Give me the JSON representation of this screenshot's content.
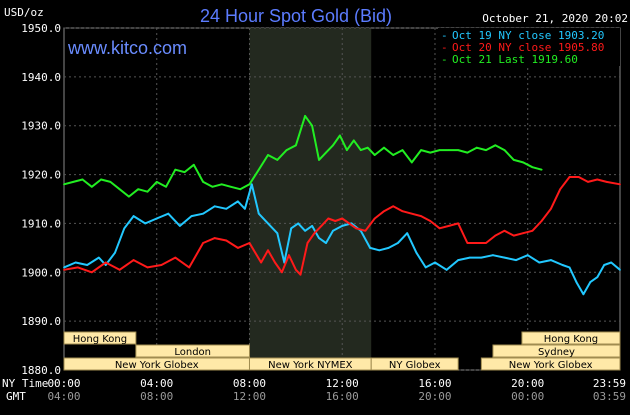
{
  "header": {
    "unit": "USD/oz",
    "title": "24 Hour Spot Gold (Bid)",
    "timestamp": "October 21, 2020 20:02",
    "site": "www.kitco.com"
  },
  "legend": [
    {
      "label": "Oct 19 NY close 1903.20",
      "color": "#22c8ff",
      "marker": "-"
    },
    {
      "label": "Oct 20 NY close 1905.80",
      "color": "#ff1a1a",
      "marker": "-"
    },
    {
      "label": "Oct 21 Last 1919.60",
      "color": "#22ee22",
      "marker": "-"
    }
  ],
  "axis_labels": {
    "ny_time": "NY Time",
    "gmt": "GMT"
  },
  "sessions": [
    {
      "label": "Hong Kong",
      "row": 0,
      "start": 0,
      "end": 3.1
    },
    {
      "label": "London",
      "row": 1,
      "start": 3.1,
      "end": 8.0
    },
    {
      "label": "New York Globex",
      "row": 2,
      "start": 0,
      "end": 8.0
    },
    {
      "label": "New York NYMEX",
      "row": 2,
      "start": 8.0,
      "end": 13.25
    },
    {
      "label": "NY Globex",
      "row": 2,
      "start": 13.25,
      "end": 17.0
    },
    {
      "label": "Hong Kong",
      "row": 0,
      "start": 19.75,
      "end": 23.98
    },
    {
      "label": "Sydney",
      "row": 1,
      "start": 18.5,
      "end": 23.98
    },
    {
      "label": "New York Globex",
      "row": 2,
      "start": 18.0,
      "end": 23.98
    }
  ],
  "chart_data": {
    "type": "line",
    "title": "24 Hour Spot Gold (Bid)",
    "ylabel": "USD/oz",
    "ylim": [
      1880,
      1950
    ],
    "xlim": [
      0,
      23.98
    ],
    "y_ticks": [
      "1880.0",
      "1890.0",
      "1900.0",
      "1910.0",
      "1920.0",
      "1930.0",
      "1940.0",
      "1950.0"
    ],
    "x_ticks_ny": [
      "00:00",
      "04:00",
      "08:00",
      "12:00",
      "16:00",
      "20:00",
      "23:59"
    ],
    "x_ticks_gmt": [
      "04:00",
      "08:00",
      "12:00",
      "16:00",
      "20:00",
      "00:00",
      "03:59"
    ],
    "x_tick_hours": [
      0,
      4,
      8,
      12,
      16,
      20,
      23.98
    ],
    "shaded_region": [
      8.0,
      13.25
    ],
    "series": [
      {
        "name": "Oct 19 NY close 1903.20",
        "color": "#22c8ff",
        "x": [
          0,
          0.5,
          1.0,
          1.5,
          1.8,
          2.2,
          2.6,
          3.0,
          3.5,
          4.0,
          4.5,
          5.0,
          5.5,
          6.0,
          6.5,
          7.0,
          7.5,
          7.8,
          8.1,
          8.4,
          8.8,
          9.2,
          9.5,
          9.8,
          10.1,
          10.4,
          10.7,
          11.0,
          11.3,
          11.6,
          12.0,
          12.4,
          12.8,
          13.2,
          13.6,
          14.0,
          14.4,
          14.8,
          15.2,
          15.6,
          16.0,
          16.5,
          17.0,
          17.5,
          18.0,
          18.5,
          19.0,
          19.5,
          20.0,
          20.5,
          21.0,
          21.5,
          21.8,
          22.1,
          22.4,
          22.7,
          23.0,
          23.3,
          23.6,
          23.98
        ],
        "values": [
          1901,
          1902,
          1901.5,
          1903,
          1901.5,
          1904,
          1909,
          1911.5,
          1910,
          1911,
          1912,
          1909.5,
          1911.5,
          1912,
          1913.5,
          1913,
          1914.5,
          1913,
          1918,
          1912,
          1910,
          1908,
          1902,
          1909,
          1910,
          1908.5,
          1909.5,
          1907,
          1906,
          1908.5,
          1909.5,
          1910,
          1908.5,
          1905,
          1904.5,
          1905,
          1906,
          1908,
          1904,
          1901,
          1902,
          1900.5,
          1902.5,
          1903,
          1903,
          1903.5,
          1903,
          1902.5,
          1903.5,
          1902,
          1902.5,
          1901.5,
          1901,
          1898,
          1895.5,
          1898,
          1899,
          1901.5,
          1902,
          1900.5
        ]
      },
      {
        "name": "Oct 20 NY close 1905.80",
        "color": "#ff1a1a",
        "x": [
          0,
          0.6,
          1.2,
          1.8,
          2.4,
          3.0,
          3.6,
          4.2,
          4.8,
          5.4,
          6.0,
          6.5,
          7.0,
          7.5,
          8.0,
          8.5,
          8.8,
          9.1,
          9.4,
          9.7,
          10.0,
          10.2,
          10.5,
          10.8,
          11.1,
          11.4,
          11.7,
          12.0,
          12.3,
          12.6,
          13.0,
          13.4,
          13.8,
          14.2,
          14.6,
          15.0,
          15.4,
          15.8,
          16.2,
          16.6,
          17.0,
          17.4,
          17.8,
          18.2,
          18.6,
          19.0,
          19.4,
          19.8,
          20.2,
          20.6,
          21.0,
          21.4,
          21.8,
          22.2,
          22.6,
          23.0,
          23.4,
          23.98
        ],
        "values": [
          1900.5,
          1901,
          1900,
          1902,
          1900.5,
          1902.5,
          1901,
          1901.5,
          1903,
          1901,
          1906,
          1907,
          1906.5,
          1905,
          1906,
          1902,
          1904.5,
          1902,
          1900,
          1903.5,
          1900.5,
          1899.5,
          1906,
          1908,
          1909.5,
          1911,
          1910.5,
          1911,
          1910,
          1909,
          1908.5,
          1911,
          1912.5,
          1913.5,
          1912.5,
          1912,
          1911.5,
          1910.5,
          1909,
          1909.5,
          1910,
          1906,
          1906,
          1906,
          1907.5,
          1908.5,
          1907.5,
          1908,
          1908.5,
          1910.5,
          1913,
          1917,
          1919.5,
          1919.5,
          1918.5,
          1919,
          1918.5,
          1918
        ]
      },
      {
        "name": "Oct 21 Last 1919.60",
        "color": "#22ee22",
        "x": [
          0,
          0.4,
          0.8,
          1.2,
          1.6,
          2.0,
          2.4,
          2.8,
          3.2,
          3.6,
          4.0,
          4.4,
          4.8,
          5.2,
          5.6,
          6.0,
          6.4,
          6.8,
          7.2,
          7.6,
          8.0,
          8.4,
          8.8,
          9.2,
          9.6,
          10.0,
          10.4,
          10.7,
          11.0,
          11.3,
          11.6,
          11.9,
          12.2,
          12.5,
          12.8,
          13.1,
          13.4,
          13.8,
          14.2,
          14.6,
          15.0,
          15.4,
          15.8,
          16.2,
          16.6,
          17.0,
          17.4,
          17.8,
          18.2,
          18.6,
          19.0,
          19.4,
          19.8,
          20.2,
          20.6
        ],
        "values": [
          1918,
          1918.5,
          1919,
          1917.5,
          1919,
          1918.5,
          1917,
          1915.5,
          1917,
          1916.5,
          1918.5,
          1917.5,
          1921,
          1920.5,
          1922,
          1918.5,
          1917.5,
          1918,
          1917.5,
          1917,
          1918,
          1921,
          1924,
          1923,
          1925,
          1926,
          1932,
          1930,
          1923,
          1924.5,
          1926,
          1928,
          1925,
          1927,
          1925,
          1925.5,
          1924,
          1925.5,
          1924,
          1925,
          1922.5,
          1925,
          1924.5,
          1925,
          1925,
          1925,
          1924.5,
          1925.5,
          1925,
          1926,
          1925,
          1923,
          1922.5,
          1921.5,
          1921
        ]
      }
    ],
    "grid": true,
    "legend_position": "top-right"
  }
}
